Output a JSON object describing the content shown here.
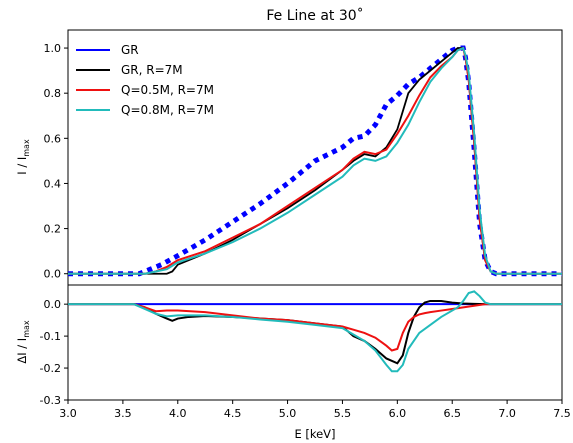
{
  "chart_data": {
    "type": "line",
    "title": "Fe Line at 30˚",
    "xlabel": "E [keV]",
    "xlim": [
      3.0,
      7.5
    ],
    "xticks": [
      "3.0",
      "3.5",
      "4.0",
      "4.5",
      "5.0",
      "5.5",
      "6.0",
      "6.5",
      "7.0",
      "7.5"
    ],
    "legend_position": "top-left",
    "panels": [
      {
        "id": "top",
        "ylabel_main": "I / I",
        "ylabel_sub": "max",
        "ylim": [
          -0.05,
          1.08
        ],
        "yticks": [
          "0.0",
          "0.2",
          "0.4",
          "0.6",
          "0.8",
          "1.0"
        ],
        "series": [
          {
            "name": "GR",
            "color": "#0000ff",
            "style": "dotted",
            "x": [
              3.0,
              3.5,
              3.65,
              3.75,
              3.85,
              4.0,
              4.25,
              4.5,
              4.75,
              5.0,
              5.25,
              5.5,
              5.6,
              5.7,
              5.8,
              5.9,
              6.0,
              6.1,
              6.2,
              6.3,
              6.4,
              6.5,
              6.55,
              6.6,
              6.62,
              6.65,
              6.7,
              6.75,
              6.8,
              6.85,
              6.9,
              7.0,
              7.5
            ],
            "y": [
              0,
              0,
              0,
              0.02,
              0.04,
              0.08,
              0.15,
              0.23,
              0.31,
              0.4,
              0.5,
              0.56,
              0.6,
              0.61,
              0.66,
              0.75,
              0.79,
              0.84,
              0.87,
              0.91,
              0.95,
              0.99,
              1.0,
              1.0,
              0.96,
              0.85,
              0.55,
              0.22,
              0.06,
              0.01,
              0,
              0,
              0
            ]
          },
          {
            "name": "GR, R=7M",
            "color": "#000000",
            "style": "solid",
            "x": [
              3.0,
              3.9,
              3.95,
              4.0,
              4.25,
              4.5,
              4.75,
              5.0,
              5.25,
              5.5,
              5.6,
              5.7,
              5.8,
              5.9,
              6.0,
              6.1,
              6.2,
              6.3,
              6.4,
              6.5,
              6.55,
              6.6,
              6.62,
              6.65,
              6.7,
              6.75,
              6.8,
              6.85,
              6.9,
              7.0,
              7.5
            ],
            "y": [
              0,
              0,
              0.01,
              0.04,
              0.09,
              0.15,
              0.22,
              0.29,
              0.37,
              0.46,
              0.5,
              0.53,
              0.52,
              0.56,
              0.64,
              0.8,
              0.86,
              0.9,
              0.94,
              0.98,
              1.0,
              1.0,
              0.96,
              0.86,
              0.58,
              0.24,
              0.06,
              0.01,
              0,
              0,
              0
            ]
          },
          {
            "name": "Q=0.5M, R=7M",
            "color": "#ee1111",
            "style": "solid",
            "x": [
              3.0,
              3.7,
              3.8,
              3.9,
              4.0,
              4.25,
              4.5,
              4.75,
              5.0,
              5.25,
              5.5,
              5.6,
              5.7,
              5.8,
              5.9,
              6.0,
              6.1,
              6.2,
              6.3,
              6.4,
              6.5,
              6.55,
              6.6,
              6.62,
              6.65,
              6.7,
              6.75,
              6.8,
              6.85,
              6.9,
              7.0,
              7.5
            ],
            "y": [
              0,
              0,
              0.01,
              0.03,
              0.06,
              0.1,
              0.16,
              0.22,
              0.3,
              0.38,
              0.46,
              0.51,
              0.54,
              0.53,
              0.55,
              0.62,
              0.7,
              0.79,
              0.87,
              0.92,
              0.96,
              0.99,
              1.0,
              0.96,
              0.86,
              0.58,
              0.24,
              0.06,
              0.01,
              0,
              0,
              0
            ]
          },
          {
            "name": "Q=0.8M, R=7M",
            "color": "#22bbbb",
            "style": "solid",
            "x": [
              3.0,
              3.7,
              3.8,
              3.9,
              4.0,
              4.25,
              4.5,
              4.75,
              5.0,
              5.25,
              5.5,
              5.6,
              5.7,
              5.8,
              5.9,
              6.0,
              6.1,
              6.2,
              6.3,
              6.4,
              6.5,
              6.55,
              6.6,
              6.62,
              6.65,
              6.7,
              6.75,
              6.8,
              6.85,
              6.9,
              7.0,
              7.5
            ],
            "y": [
              0,
              0,
              0.01,
              0.02,
              0.05,
              0.09,
              0.14,
              0.2,
              0.27,
              0.35,
              0.43,
              0.48,
              0.51,
              0.5,
              0.52,
              0.58,
              0.66,
              0.76,
              0.85,
              0.91,
              0.96,
              0.99,
              1.0,
              0.97,
              0.89,
              0.62,
              0.28,
              0.08,
              0.01,
              0,
              0,
              0
            ]
          }
        ]
      },
      {
        "id": "bottom",
        "ylabel_main": "ΔI / I",
        "ylabel_sub": "max",
        "ylim": [
          -0.3,
          0.06
        ],
        "yticks": [
          "0.0",
          "-0.1",
          "-0.2",
          "-0.3"
        ],
        "series": [
          {
            "name": "GR",
            "color": "#0000ff",
            "style": "solid",
            "x": [
              3.0,
              7.5
            ],
            "y": [
              0,
              0
            ]
          },
          {
            "name": "GR, R=7M",
            "color": "#000000",
            "style": "solid",
            "x": [
              3.0,
              3.6,
              3.7,
              3.8,
              3.9,
              3.95,
              4.0,
              4.1,
              4.25,
              4.5,
              4.75,
              5.0,
              5.25,
              5.5,
              5.6,
              5.7,
              5.8,
              5.9,
              6.0,
              6.05,
              6.1,
              6.15,
              6.2,
              6.25,
              6.3,
              6.4,
              6.5,
              6.6,
              6.7,
              6.8,
              7.0,
              7.5
            ],
            "y": [
              0,
              0,
              -0.01,
              -0.03,
              -0.045,
              -0.052,
              -0.045,
              -0.04,
              -0.037,
              -0.04,
              -0.045,
              -0.05,
              -0.06,
              -0.07,
              -0.1,
              -0.115,
              -0.14,
              -0.17,
              -0.185,
              -0.16,
              -0.09,
              -0.04,
              -0.01,
              0.005,
              0.01,
              0.01,
              0.005,
              0.002,
              0.001,
              0,
              0,
              0
            ]
          },
          {
            "name": "Q=0.5M, R=7M",
            "color": "#ee1111",
            "style": "solid",
            "x": [
              3.0,
              3.6,
              3.7,
              3.8,
              3.9,
              4.0,
              4.25,
              4.5,
              4.75,
              5.0,
              5.25,
              5.5,
              5.6,
              5.7,
              5.8,
              5.9,
              5.95,
              6.0,
              6.05,
              6.1,
              6.15,
              6.2,
              6.25,
              6.3,
              6.4,
              6.5,
              6.6,
              6.7,
              6.8,
              7.0,
              7.5
            ],
            "y": [
              0,
              0,
              -0.01,
              -0.022,
              -0.02,
              -0.02,
              -0.025,
              -0.035,
              -0.045,
              -0.05,
              -0.06,
              -0.07,
              -0.08,
              -0.09,
              -0.105,
              -0.13,
              -0.145,
              -0.14,
              -0.09,
              -0.055,
              -0.04,
              -0.032,
              -0.028,
              -0.025,
              -0.02,
              -0.015,
              -0.01,
              -0.005,
              0,
              0,
              0
            ]
          },
          {
            "name": "Q=0.8M, R=7M",
            "color": "#22bbbb",
            "style": "solid",
            "x": [
              3.0,
              3.6,
              3.7,
              3.8,
              3.9,
              4.0,
              4.25,
              4.5,
              4.75,
              5.0,
              5.25,
              5.5,
              5.6,
              5.7,
              5.8,
              5.9,
              5.95,
              6.0,
              6.05,
              6.1,
              6.2,
              6.3,
              6.4,
              6.5,
              6.55,
              6.6,
              6.65,
              6.7,
              6.75,
              6.8,
              6.85,
              6.9,
              7.0,
              7.5
            ],
            "y": [
              0,
              0,
              -0.015,
              -0.03,
              -0.038,
              -0.035,
              -0.035,
              -0.04,
              -0.048,
              -0.055,
              -0.065,
              -0.075,
              -0.095,
              -0.115,
              -0.145,
              -0.19,
              -0.21,
              -0.21,
              -0.19,
              -0.14,
              -0.09,
              -0.065,
              -0.04,
              -0.02,
              -0.01,
              0.01,
              0.035,
              0.04,
              0.025,
              0.005,
              0,
              0,
              0,
              0
            ]
          }
        ]
      }
    ]
  }
}
